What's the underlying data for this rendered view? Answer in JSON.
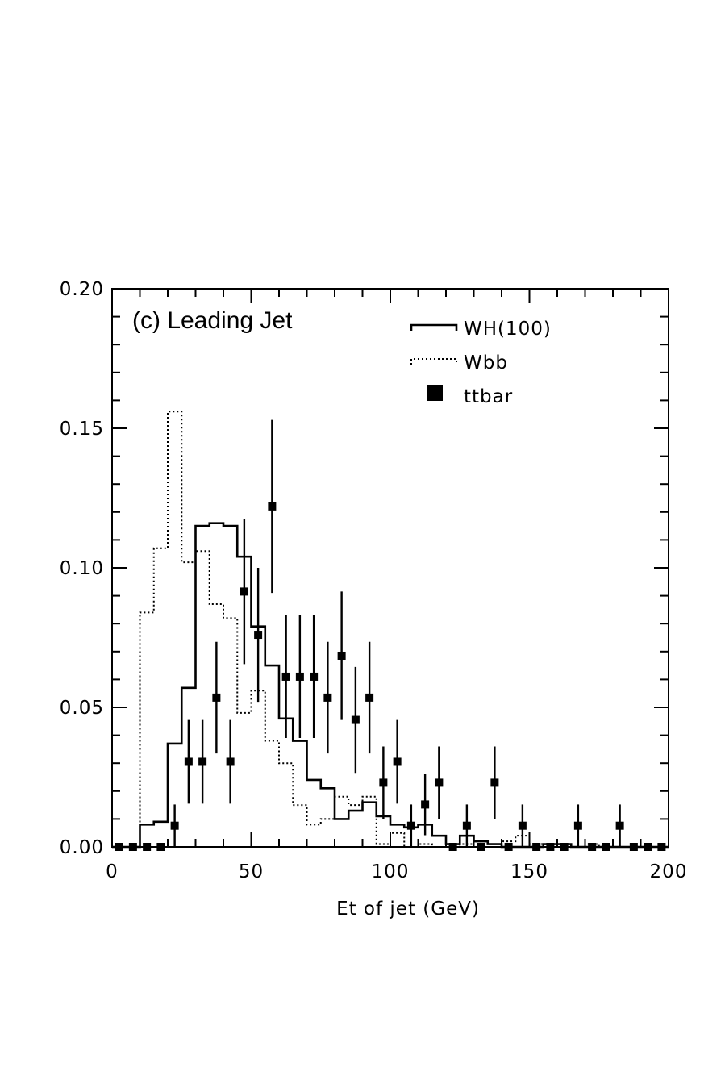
{
  "chart_data": {
    "type": "histogram",
    "panel_label": "(c) Leading Jet",
    "xlabel": "Et of jet (GeV)",
    "ylabel": "",
    "xlim": [
      0,
      200
    ],
    "ylim": [
      0,
      0.2
    ],
    "x_ticks": [
      "0",
      "50",
      "100",
      "150",
      "200"
    ],
    "y_ticks": [
      "0.00",
      "0.05",
      "0.10",
      "0.15",
      "0.20"
    ],
    "legend_position": "top-right",
    "bin_edges": [
      0,
      5,
      10,
      15,
      20,
      25,
      30,
      35,
      40,
      45,
      50,
      55,
      60,
      65,
      70,
      75,
      80,
      85,
      90,
      95,
      100,
      105,
      110,
      115,
      120,
      125,
      130,
      135,
      140,
      145,
      150,
      155,
      160,
      165,
      170,
      175,
      180,
      185,
      190,
      195,
      200
    ],
    "series": [
      {
        "name": "WH(100)",
        "style": "solid-line",
        "values": [
          0,
          0,
          0.008,
          0.009,
          0.037,
          0.057,
          0.115,
          0.116,
          0.115,
          0.104,
          0.079,
          0.065,
          0.046,
          0.038,
          0.024,
          0.021,
          0.01,
          0.013,
          0.016,
          0.011,
          0.008,
          0.007,
          0.008,
          0.004,
          0.001,
          0.004,
          0.002,
          0.001,
          0,
          0,
          0,
          0.001,
          0.001,
          0,
          0,
          0,
          0,
          0,
          0,
          0
        ]
      },
      {
        "name": "Wbb",
        "style": "dotted-line",
        "values": [
          0,
          0,
          0.084,
          0.107,
          0.156,
          0.102,
          0.106,
          0.087,
          0.082,
          0.048,
          0.056,
          0.038,
          0.03,
          0.015,
          0.008,
          0.01,
          0.018,
          0.015,
          0.018,
          0.001,
          0.005,
          0,
          0.001,
          0,
          0,
          0.001,
          0.002,
          0.001,
          0.002,
          0.004,
          0.001,
          0,
          0,
          0,
          0.001,
          0,
          0,
          0,
          0,
          0
        ]
      },
      {
        "name": "ttbar",
        "style": "filled-square-markers-with-error-bars",
        "x": [
          2.5,
          7.5,
          12.5,
          17.5,
          22.5,
          27.5,
          32.5,
          37.5,
          42.5,
          47.5,
          52.5,
          57.5,
          62.5,
          67.5,
          72.5,
          77.5,
          82.5,
          87.5,
          92.5,
          97.5,
          102.5,
          107.5,
          112.5,
          117.5,
          122.5,
          127.5,
          132.5,
          137.5,
          142.5,
          147.5,
          152.5,
          157.5,
          162.5,
          167.5,
          172.5,
          177.5,
          182.5,
          187.5,
          192.5,
          197.5
        ],
        "values": [
          0,
          0,
          0,
          0,
          0.0076,
          0.0305,
          0.0305,
          0.0535,
          0.0305,
          0.0915,
          0.076,
          0.122,
          0.061,
          0.061,
          0.061,
          0.0535,
          0.0685,
          0.0455,
          0.0535,
          0.023,
          0.0305,
          0.0076,
          0.0152,
          0.023,
          0,
          0.0076,
          0,
          0.023,
          0,
          0.0076,
          0,
          0,
          0,
          0.0076,
          0,
          0,
          0.0076,
          0,
          0,
          0
        ],
        "errors": [
          0,
          0,
          0,
          0,
          0.0076,
          0.015,
          0.015,
          0.02,
          0.015,
          0.026,
          0.024,
          0.031,
          0.022,
          0.022,
          0.022,
          0.02,
          0.023,
          0.019,
          0.02,
          0.013,
          0.015,
          0.0076,
          0.011,
          0.013,
          0,
          0.0076,
          0,
          0.013,
          0,
          0.0076,
          0,
          0,
          0,
          0.0076,
          0,
          0,
          0.0076,
          0,
          0,
          0
        ]
      }
    ]
  }
}
